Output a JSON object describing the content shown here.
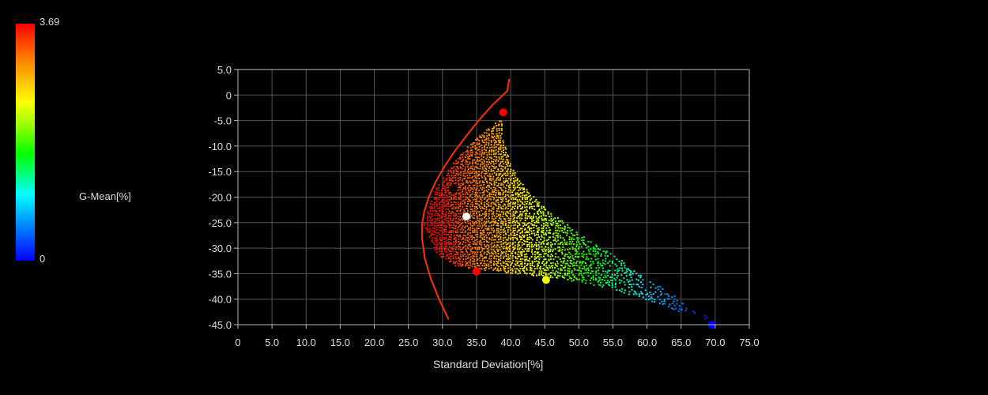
{
  "chart_data": {
    "type": "scatter",
    "title": "",
    "xlabel": "Standard Deviation[%]",
    "ylabel": "",
    "xlim": [
      0,
      75
    ],
    "ylim": [
      -45,
      5
    ],
    "grid": true,
    "x_ticks": [
      "0",
      "5.0",
      "10.0",
      "15.0",
      "20.0",
      "25.0",
      "30.0",
      "35.0",
      "40.0",
      "45.0",
      "50.0",
      "55.0",
      "60.0",
      "65.0",
      "70.0",
      "75.0"
    ],
    "y_ticks": [
      "5.0",
      "0",
      "-5.0",
      "-10.0",
      "-15.0",
      "-20.0",
      "-25.0",
      "-30.0",
      "-35.0",
      "-40.0",
      "-45.0"
    ],
    "colorbar": {
      "label": "G-Mean[%]",
      "min": "0",
      "max": "3.69",
      "colors": [
        "#ff0000",
        "#ff7f00",
        "#ffff00",
        "#7fff00",
        "#00ff00",
        "#00ffff",
        "#007fff",
        "#0000ff"
      ]
    },
    "frontier_curve": [
      [
        30.9,
        -44
      ],
      [
        29.5,
        -40
      ],
      [
        28.3,
        -36
      ],
      [
        27.4,
        -32
      ],
      [
        27.0,
        -28
      ],
      [
        27.0,
        -25.5
      ],
      [
        27.3,
        -23
      ],
      [
        28.0,
        -20
      ],
      [
        29.0,
        -17
      ],
      [
        30.3,
        -14
      ],
      [
        31.8,
        -11
      ],
      [
        33.5,
        -8
      ],
      [
        35.3,
        -5
      ],
      [
        37.3,
        -2
      ],
      [
        39.5,
        0.8
      ],
      [
        39.8,
        3.2
      ]
    ],
    "cloud_boundary": [
      [
        27.2,
        -25.5
      ],
      [
        29,
        -31
      ],
      [
        32,
        -33.5
      ],
      [
        35,
        -34
      ],
      [
        40,
        -34.8
      ],
      [
        45,
        -35.5
      ],
      [
        50,
        -36.5
      ],
      [
        55,
        -38
      ],
      [
        60,
        -40
      ],
      [
        65,
        -42.5
      ],
      [
        67,
        -43
      ],
      [
        70,
        -44.8
      ],
      [
        70,
        -44
      ],
      [
        66,
        -41.5
      ],
      [
        63,
        -38
      ],
      [
        59,
        -35
      ],
      [
        55,
        -31
      ],
      [
        50,
        -27
      ],
      [
        45,
        -22
      ],
      [
        42,
        -18
      ],
      [
        40,
        -14
      ],
      [
        38.8,
        -8
      ],
      [
        38.5,
        -4.5
      ],
      [
        36,
        -7
      ],
      [
        33.5,
        -10
      ],
      [
        31,
        -14
      ],
      [
        29,
        -18
      ],
      [
        27.8,
        -22
      ]
    ],
    "marker_points": [
      {
        "x": 38.9,
        "y": -3.4,
        "color": "#ff0000"
      },
      {
        "x": 31.6,
        "y": -18.4,
        "color": "#000000"
      },
      {
        "x": 33.5,
        "y": -23.8,
        "color": "#ffffff"
      },
      {
        "x": 35.0,
        "y": -34.6,
        "color": "#ff0000"
      },
      {
        "x": 45.2,
        "y": -36.2,
        "color": "#ffff00"
      },
      {
        "x": 69.5,
        "y": -45.0,
        "color": "#0000ff"
      }
    ],
    "frontier_color": "#ff3000"
  }
}
